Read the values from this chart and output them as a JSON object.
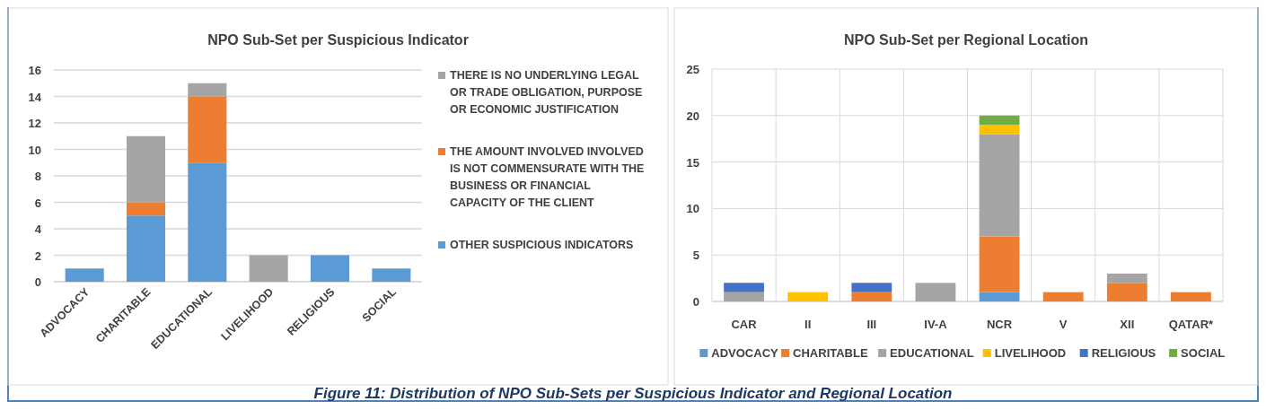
{
  "chart_data": [
    {
      "type": "bar",
      "title": "NPO Sub-Set per Suspicious  Indicator",
      "stacked": true,
      "categories": [
        "ADVOCACY",
        "CHARITABLE",
        "EDUCATIONAL",
        "LIVELIHOOD",
        "RELIGIOUS",
        "SOCIAL"
      ],
      "ylim": [
        0,
        16
      ],
      "yticks": [
        0,
        2,
        4,
        6,
        8,
        10,
        12,
        14,
        16
      ],
      "grid": "y",
      "legend": "right",
      "series": [
        {
          "name": "OTHER SUSPICIOUS INDICATORS",
          "color": "#5b9bd5",
          "values": [
            1,
            5,
            9,
            0,
            2,
            1
          ]
        },
        {
          "name": "THE AMOUNT INVOLVED INVOLVED IS NOT COMMENSURATE WITH THE BUSINESS OR FINANCIAL CAPACITY OF THE CLIENT",
          "color": "#ed7d31",
          "values": [
            0,
            1,
            5,
            0,
            0,
            0
          ]
        },
        {
          "name": "THERE IS NO UNDERLYING LEGAL OR TRADE OBLIGATION, PURPOSE OR ECONOMIC JUSTIFICATION",
          "color": "#a5a5a5",
          "values": [
            0,
            5,
            1,
            2,
            0,
            0
          ]
        }
      ]
    },
    {
      "type": "bar",
      "title": "NPO Sub-Set per Regional Location",
      "stacked": true,
      "categories": [
        "CAR",
        "II",
        "III",
        "IV-A",
        "NCR",
        "V",
        "XII",
        "QATAR*"
      ],
      "ylim": [
        0,
        25
      ],
      "yticks": [
        0,
        5,
        10,
        15,
        20,
        25
      ],
      "grid": true,
      "legend": "bottom",
      "annotations": [
        "Figure 11: Distribution of NPO Sub-Sets per Suspicious Indicator and Regional Location"
      ],
      "series": [
        {
          "name": "ADVOCACY",
          "color": "#5b9bd5",
          "values": [
            0,
            0,
            0,
            0,
            1,
            0,
            0,
            0
          ]
        },
        {
          "name": "CHARITABLE",
          "color": "#ed7d31",
          "values": [
            0,
            0,
            1,
            0,
            6,
            1,
            2,
            1
          ]
        },
        {
          "name": "EDUCATIONAL",
          "color": "#a5a5a5",
          "values": [
            1,
            0,
            0,
            2,
            11,
            0,
            1,
            0
          ]
        },
        {
          "name": "LIVELIHOOD",
          "color": "#ffc000",
          "values": [
            0,
            1,
            0,
            0,
            1,
            0,
            0,
            0
          ]
        },
        {
          "name": "RELIGIOUS",
          "color": "#4472c4",
          "values": [
            1,
            0,
            1,
            0,
            0,
            0,
            0,
            0
          ]
        },
        {
          "name": "SOCIAL",
          "color": "#70ad47",
          "values": [
            0,
            0,
            0,
            0,
            1,
            0,
            0,
            0
          ]
        }
      ]
    }
  ]
}
